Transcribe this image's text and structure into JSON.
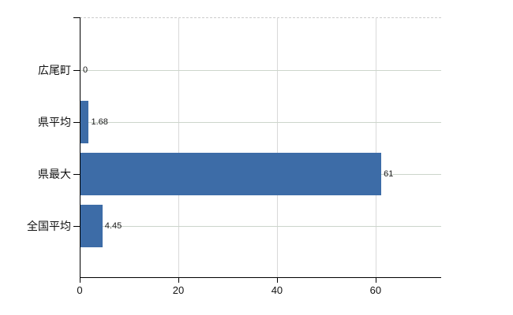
{
  "chart_data": {
    "type": "bar",
    "orientation": "horizontal",
    "title": "",
    "categories": [
      "広尾町",
      "県平均",
      "県最大",
      "全国平均"
    ],
    "values": [
      0,
      1.68,
      61,
      4.45
    ],
    "value_labels": [
      "0",
      "1.68",
      "61",
      "4.45"
    ],
    "x_ticks": [
      0,
      20,
      40,
      60
    ],
    "x_tick_labels": [
      "0",
      "20",
      "40",
      "60"
    ],
    "xlim": [
      0,
      73.3
    ],
    "grid": true,
    "legend_position": "none",
    "colors": {
      "bar": "#3d6ca7",
      "h_gridline": "#ccd5cb",
      "v_gridline": "#d9d9d9",
      "axis": "#000000",
      "top_border": "#cccccc",
      "text": "#1a1a1a"
    }
  }
}
